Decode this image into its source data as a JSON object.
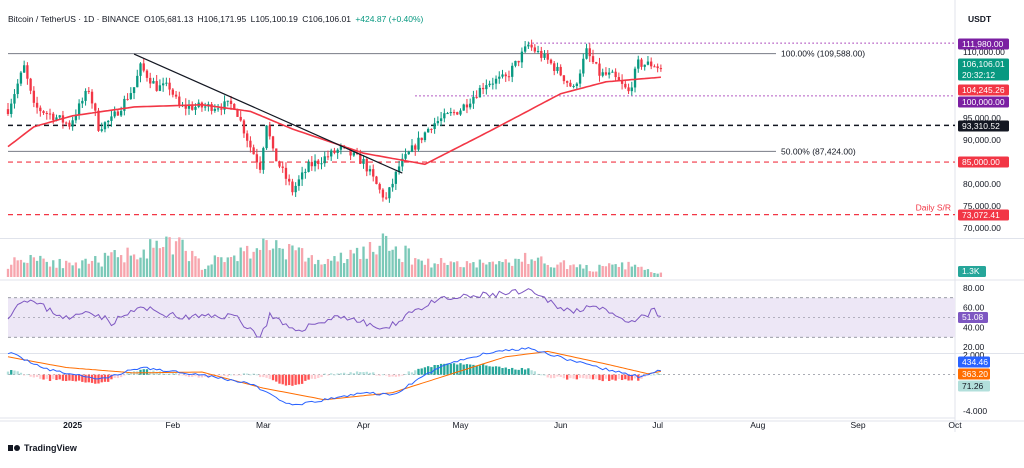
{
  "header": {
    "symbol": "Bitcoin / TetherUS · 1D · BINANCE",
    "open": "O105,681.13",
    "high": "H106,171.95",
    "low": "L105,100.19",
    "close": "C106,106.01",
    "change": "+424.87 (+0.40%)",
    "currency": "USDT"
  },
  "footer": {
    "brand": "TradingView"
  },
  "colors": {
    "up": "#089981",
    "down": "#f23645",
    "ema": "#f23645",
    "rsi": "#7e57c2",
    "macd": "#2962ff",
    "signal": "#ff6d00",
    "fib": "#787b86",
    "purple": "#9c27b0",
    "support": "#f23645",
    "black": "#131722",
    "trendline": "#131722"
  },
  "chart_data": [
    {
      "type": "candlestick",
      "title": "Bitcoin / TetherUS · 1D · BINANCE",
      "ylim": [
        68000,
        114500
      ],
      "y_ticks": [
        70000,
        75000,
        80000,
        85000,
        90000,
        95000,
        110000
      ],
      "y_tick_labels": [
        "70,000.00",
        "75,000.00",
        "80,000.00",
        "85,000.00",
        "90,000.00",
        "95,000.00",
        "110,000.00"
      ],
      "x_ticks": [
        {
          "date": "2025-01-01",
          "label": "2025"
        },
        {
          "date": "2025-02-01",
          "label": "Feb"
        },
        {
          "date": "2025-03-01",
          "label": "Mar"
        },
        {
          "date": "2025-04-01",
          "label": "Apr"
        },
        {
          "date": "2025-05-01",
          "label": "May"
        },
        {
          "date": "2025-06-01",
          "label": "Jun"
        },
        {
          "date": "2025-07-01",
          "label": "Jul"
        },
        {
          "date": "2025-08-01",
          "label": "Aug"
        },
        {
          "date": "2025-09-01",
          "label": "Sep"
        },
        {
          "date": "2025-10-01",
          "label": "Oct"
        }
      ],
      "xlim": [
        "2024-12-12",
        "2025-10-01"
      ],
      "candle_anchors": [
        [
          "2024-12-12",
          97000
        ],
        [
          "2024-12-17",
          106500
        ],
        [
          "2024-12-20",
          97500
        ],
        [
          "2024-12-26",
          95500
        ],
        [
          "2024-12-31",
          93500
        ],
        [
          "2025-01-06",
          101500
        ],
        [
          "2025-01-09",
          93000
        ],
        [
          "2025-01-13",
          94500
        ],
        [
          "2025-01-20",
          102000
        ],
        [
          "2025-01-22",
          106500
        ],
        [
          "2025-01-27",
          102000
        ],
        [
          "2025-01-31",
          102000
        ],
        [
          "2025-02-03",
          97500
        ],
        [
          "2025-02-10",
          97500
        ],
        [
          "2025-02-20",
          98000
        ],
        [
          "2025-02-25",
          88500
        ],
        [
          "2025-02-28",
          84000
        ],
        [
          "2025-03-02",
          94000
        ],
        [
          "2025-03-04",
          87000
        ],
        [
          "2025-03-10",
          78500
        ],
        [
          "2025-03-15",
          84000
        ],
        [
          "2025-03-20",
          86000
        ],
        [
          "2025-03-25",
          88000
        ],
        [
          "2025-04-01",
          85000
        ],
        [
          "2025-04-06",
          78500
        ],
        [
          "2025-04-08",
          76500
        ],
        [
          "2025-04-12",
          84000
        ],
        [
          "2025-04-22",
          93500
        ],
        [
          "2025-05-01",
          97000
        ],
        [
          "2025-05-09",
          103000
        ],
        [
          "2025-05-15",
          104000
        ],
        [
          "2025-05-22",
          111500
        ],
        [
          "2025-05-28",
          108000
        ],
        [
          "2025-06-01",
          105000
        ],
        [
          "2025-06-05",
          101500
        ],
        [
          "2025-06-09",
          110000
        ],
        [
          "2025-06-13",
          105000
        ],
        [
          "2025-06-17",
          104500
        ],
        [
          "2025-06-22",
          100800
        ],
        [
          "2025-06-25",
          107300
        ],
        [
          "2025-06-30",
          107100
        ],
        [
          "2025-07-02",
          106106
        ]
      ],
      "ema_anchors": [
        [
          "2024-12-12",
          88500
        ],
        [
          "2024-12-20",
          93000
        ],
        [
          "2025-01-01",
          95500
        ],
        [
          "2025-01-20",
          97500
        ],
        [
          "2025-02-10",
          98000
        ],
        [
          "2025-02-25",
          96500
        ],
        [
          "2025-03-10",
          92500
        ],
        [
          "2025-04-01",
          87000
        ],
        [
          "2025-04-20",
          84500
        ],
        [
          "2025-05-10",
          92000
        ],
        [
          "2025-06-01",
          100500
        ],
        [
          "2025-06-15",
          103200
        ],
        [
          "2025-07-02",
          104245
        ]
      ],
      "horizontal_levels": [
        {
          "name": "fib-100",
          "price": 109588,
          "label": "100.00% (109,588.00)",
          "style": "solid-gray"
        },
        {
          "name": "fib-50",
          "price": 87424,
          "label": "50.00% (87,424.00)",
          "style": "solid-gray"
        },
        {
          "name": "high-dotted",
          "price": 111980,
          "style": "dotted-purple"
        },
        {
          "name": "100k-dotted",
          "price": 100000,
          "style": "dotted-purple"
        },
        {
          "name": "93k-dashed",
          "price": 93310.52,
          "style": "dashed-black"
        },
        {
          "name": "85k-dashed",
          "price": 85000,
          "style": "dashed-red"
        },
        {
          "name": "73k-dashed",
          "price": 73072.41,
          "label": "Daily S/R",
          "style": "dashed-red"
        }
      ],
      "trendline": [
        [
          "2025-01-20",
          109500
        ],
        [
          "2025-04-13",
          82500
        ]
      ],
      "price_tags": [
        {
          "price": 111980,
          "text": "111,980.00",
          "color": "#7b1fa2"
        },
        {
          "price": 106106.01,
          "text": "106,106.01",
          "text2": "20:32:12",
          "color": "#089981"
        },
        {
          "price": 104245.26,
          "text": "104,245.26",
          "color": "#f23645"
        },
        {
          "price": 100000,
          "text": "100,000.00",
          "color": "#7b1fa2"
        },
        {
          "price": 93310.52,
          "text": "93,310.52",
          "color": "#131722"
        },
        {
          "price": 85000,
          "text": "85,000.00",
          "color": "#f23645"
        },
        {
          "price": 73072.41,
          "text": "73,072.41",
          "color": "#f23645"
        }
      ]
    },
    {
      "type": "bar",
      "name": "volume",
      "last_value_label": "1.3K",
      "vol_anchors": [
        [
          "2024-12-12",
          40
        ],
        [
          "2024-12-20",
          65
        ],
        [
          "2025-01-01",
          30
        ],
        [
          "2025-01-20",
          75
        ],
        [
          "2025-02-03",
          95
        ],
        [
          "2025-02-10",
          35
        ],
        [
          "2025-02-25",
          80
        ],
        [
          "2025-03-04",
          100
        ],
        [
          "2025-03-20",
          40
        ],
        [
          "2025-04-07",
          95
        ],
        [
          "2025-04-20",
          45
        ],
        [
          "2025-05-10",
          40
        ],
        [
          "2025-05-22",
          55
        ],
        [
          "2025-06-10",
          25
        ],
        [
          "2025-06-22",
          35
        ],
        [
          "2025-07-02",
          10
        ]
      ]
    },
    {
      "type": "line",
      "name": "RSI",
      "ylim": [
        15,
        85
      ],
      "y_ticks": [
        80,
        60,
        40,
        20
      ],
      "y_tick_labels": [
        "80.00",
        "60.00",
        "40.00",
        "20.00"
      ],
      "band": [
        70,
        30
      ],
      "mid": 50,
      "last_value_label": "51.08",
      "rsi_anchors": [
        [
          "2024-12-12",
          52
        ],
        [
          "2024-12-17",
          70
        ],
        [
          "2024-12-31",
          48
        ],
        [
          "2025-01-06",
          58
        ],
        [
          "2025-01-13",
          45
        ],
        [
          "2025-01-22",
          60
        ],
        [
          "2025-02-03",
          50
        ],
        [
          "2025-02-20",
          52
        ],
        [
          "2025-02-28",
          30
        ],
        [
          "2025-03-03",
          52
        ],
        [
          "2025-03-10",
          36
        ],
        [
          "2025-03-25",
          52
        ],
        [
          "2025-04-08",
          37
        ],
        [
          "2025-04-15",
          55
        ],
        [
          "2025-04-25",
          68
        ],
        [
          "2025-05-10",
          73
        ],
        [
          "2025-05-22",
          76
        ],
        [
          "2025-06-05",
          55
        ],
        [
          "2025-06-10",
          64
        ],
        [
          "2025-06-22",
          43
        ],
        [
          "2025-06-30",
          57
        ],
        [
          "2025-07-02",
          51.08
        ]
      ]
    },
    {
      "type": "line",
      "name": "MACD",
      "ylim": [
        -4500,
        2200
      ],
      "y_ticks": [
        2000,
        -4000
      ],
      "y_tick_labels": [
        "2.000",
        "-4.000"
      ],
      "last_values": {
        "macd": "434.46",
        "signal": "363.20",
        "hist": "71.26"
      },
      "macd_anchors": [
        [
          "2024-12-12",
          2500
        ],
        [
          "2024-12-25",
          500
        ],
        [
          "2025-01-10",
          -500
        ],
        [
          "2025-01-22",
          800
        ],
        [
          "2025-02-10",
          0
        ],
        [
          "2025-02-25",
          -1000
        ],
        [
          "2025-03-10",
          -3500
        ],
        [
          "2025-04-01",
          -2000
        ],
        [
          "2025-04-10",
          -2300
        ],
        [
          "2025-04-25",
          1000
        ],
        [
          "2025-05-10",
          2500
        ],
        [
          "2025-05-22",
          3000
        ],
        [
          "2025-06-10",
          1000
        ],
        [
          "2025-06-25",
          -200
        ],
        [
          "2025-07-02",
          434.46
        ]
      ],
      "signal_anchors": [
        [
          "2024-12-12",
          2000
        ],
        [
          "2024-12-30",
          800
        ],
        [
          "2025-01-20",
          200
        ],
        [
          "2025-02-10",
          300
        ],
        [
          "2025-03-01",
          -1500
        ],
        [
          "2025-03-20",
          -2800
        ],
        [
          "2025-04-10",
          -2000
        ],
        [
          "2025-04-30",
          300
        ],
        [
          "2025-05-15",
          2000
        ],
        [
          "2025-05-28",
          2600
        ],
        [
          "2025-06-15",
          1200
        ],
        [
          "2025-06-28",
          100
        ],
        [
          "2025-07-02",
          363.2
        ]
      ]
    }
  ]
}
